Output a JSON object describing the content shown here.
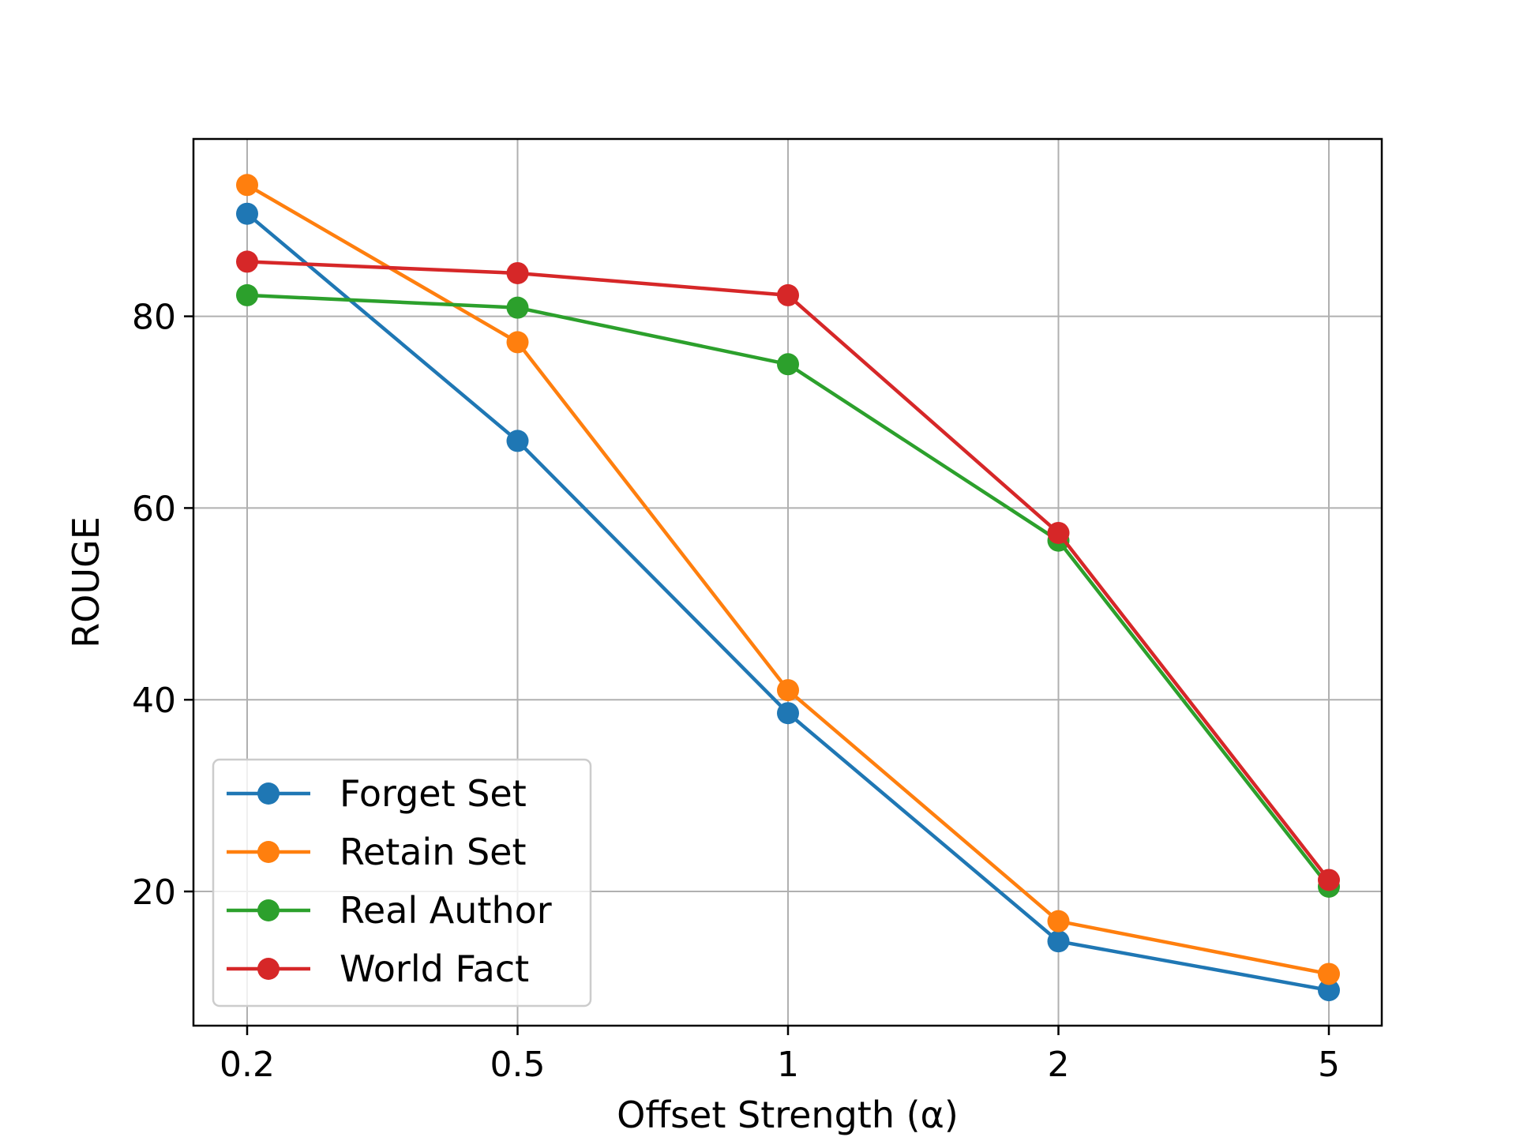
{
  "chart_data": {
    "type": "line",
    "title": "",
    "xlabel": "Offset Strength (α)",
    "ylabel": "ROUGE",
    "categories": [
      "0.2",
      "0.5",
      "1",
      "2",
      "5"
    ],
    "y_ticks": [
      20,
      40,
      60,
      80
    ],
    "ylim": [
      6,
      98.5
    ],
    "grid": true,
    "legend_position": "lower-left",
    "series": [
      {
        "name": "Forget Set",
        "color": "#1f77b4",
        "marker": "circle",
        "values": [
          90.7,
          67.0,
          38.6,
          14.8,
          9.7
        ]
      },
      {
        "name": "Retain Set",
        "color": "#ff7f0e",
        "marker": "circle",
        "values": [
          93.7,
          77.3,
          41.0,
          16.9,
          11.4
        ]
      },
      {
        "name": "Real Author",
        "color": "#2ca02c",
        "marker": "circle",
        "values": [
          82.2,
          80.9,
          75.0,
          56.6,
          20.5
        ]
      },
      {
        "name": "World Fact",
        "color": "#d62728",
        "marker": "circle",
        "values": [
          85.7,
          84.5,
          82.2,
          57.4,
          21.2
        ]
      }
    ]
  }
}
